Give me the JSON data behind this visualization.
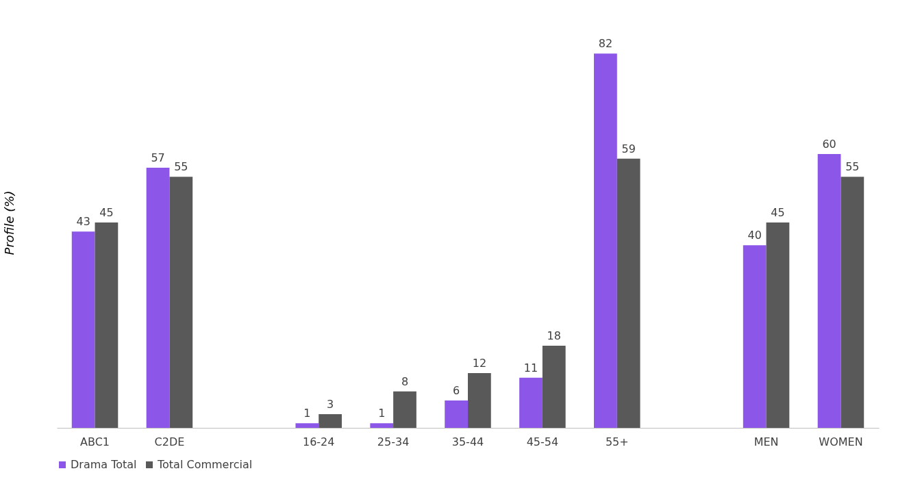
{
  "chart_data": {
    "type": "bar",
    "ylabel": "Profile (%)",
    "categories": [
      "ABC1",
      "C2DE",
      null,
      "16-24",
      "25-34",
      "35-44",
      "45-54",
      "55+",
      null,
      "MEN",
      "WOMEN"
    ],
    "series": [
      {
        "name": "Drama Total",
        "color": "#8c57e8",
        "values": [
          43,
          57,
          null,
          1,
          1,
          6,
          11,
          82,
          null,
          40,
          60
        ]
      },
      {
        "name": "Total Commercial",
        "color": "#595959",
        "values": [
          45,
          55,
          null,
          3,
          8,
          12,
          18,
          59,
          null,
          45,
          55
        ]
      }
    ],
    "data_labels": true,
    "tick_labels": "x",
    "grid": false,
    "legend": "bottom"
  }
}
